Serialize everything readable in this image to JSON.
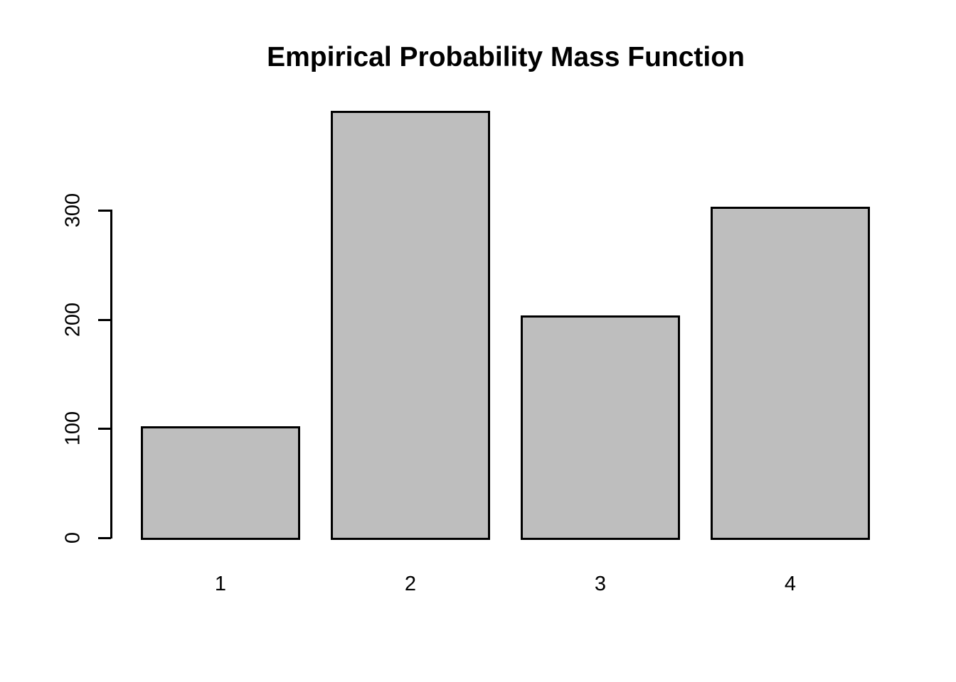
{
  "chart_data": {
    "type": "bar",
    "title": "Empirical Probability Mass Function",
    "categories": [
      "1",
      "2",
      "3",
      "4"
    ],
    "values": [
      102,
      391,
      204,
      303
    ],
    "xlabel": "",
    "ylabel": "",
    "ylim": [
      0,
      300
    ],
    "yticks": [
      0,
      100,
      200,
      300
    ],
    "ytick_labels": [
      "0",
      "100",
      "200",
      "300"
    ],
    "grid": false,
    "legend": null,
    "note": "bar for category 2 extends above the top axis tick",
    "colors": {
      "bar_fill": "#BEBEBE",
      "bar_stroke": "#000000",
      "axis": "#000000",
      "text": "#000000",
      "background": "#FFFFFF"
    }
  }
}
